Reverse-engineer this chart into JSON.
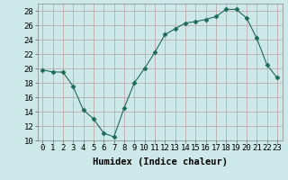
{
  "x": [
    0,
    1,
    2,
    3,
    4,
    5,
    6,
    7,
    8,
    9,
    10,
    11,
    12,
    13,
    14,
    15,
    16,
    17,
    18,
    19,
    20,
    21,
    22,
    23
  ],
  "y": [
    19.8,
    19.5,
    19.5,
    17.5,
    14.2,
    13.0,
    11.0,
    10.5,
    14.5,
    18.0,
    20.0,
    22.2,
    24.7,
    25.5,
    26.3,
    26.5,
    26.8,
    27.2,
    28.2,
    28.2,
    27.0,
    24.2,
    20.5,
    18.7
  ],
  "line_color": "#1a6b5a",
  "marker": "D",
  "marker_size": 2.5,
  "bg_color": "#cce8e8",
  "grid_color": "#c0a0a0",
  "xlabel": "Humidex (Indice chaleur)",
  "xlim": [
    -0.5,
    23.5
  ],
  "ylim": [
    10,
    29
  ],
  "yticks": [
    10,
    12,
    14,
    16,
    18,
    20,
    22,
    24,
    26,
    28
  ],
  "xticks": [
    0,
    1,
    2,
    3,
    4,
    5,
    6,
    7,
    8,
    9,
    10,
    11,
    12,
    13,
    14,
    15,
    16,
    17,
    18,
    19,
    20,
    21,
    22,
    23
  ],
  "tick_fontsize": 6.5,
  "xlabel_fontsize": 7.5
}
